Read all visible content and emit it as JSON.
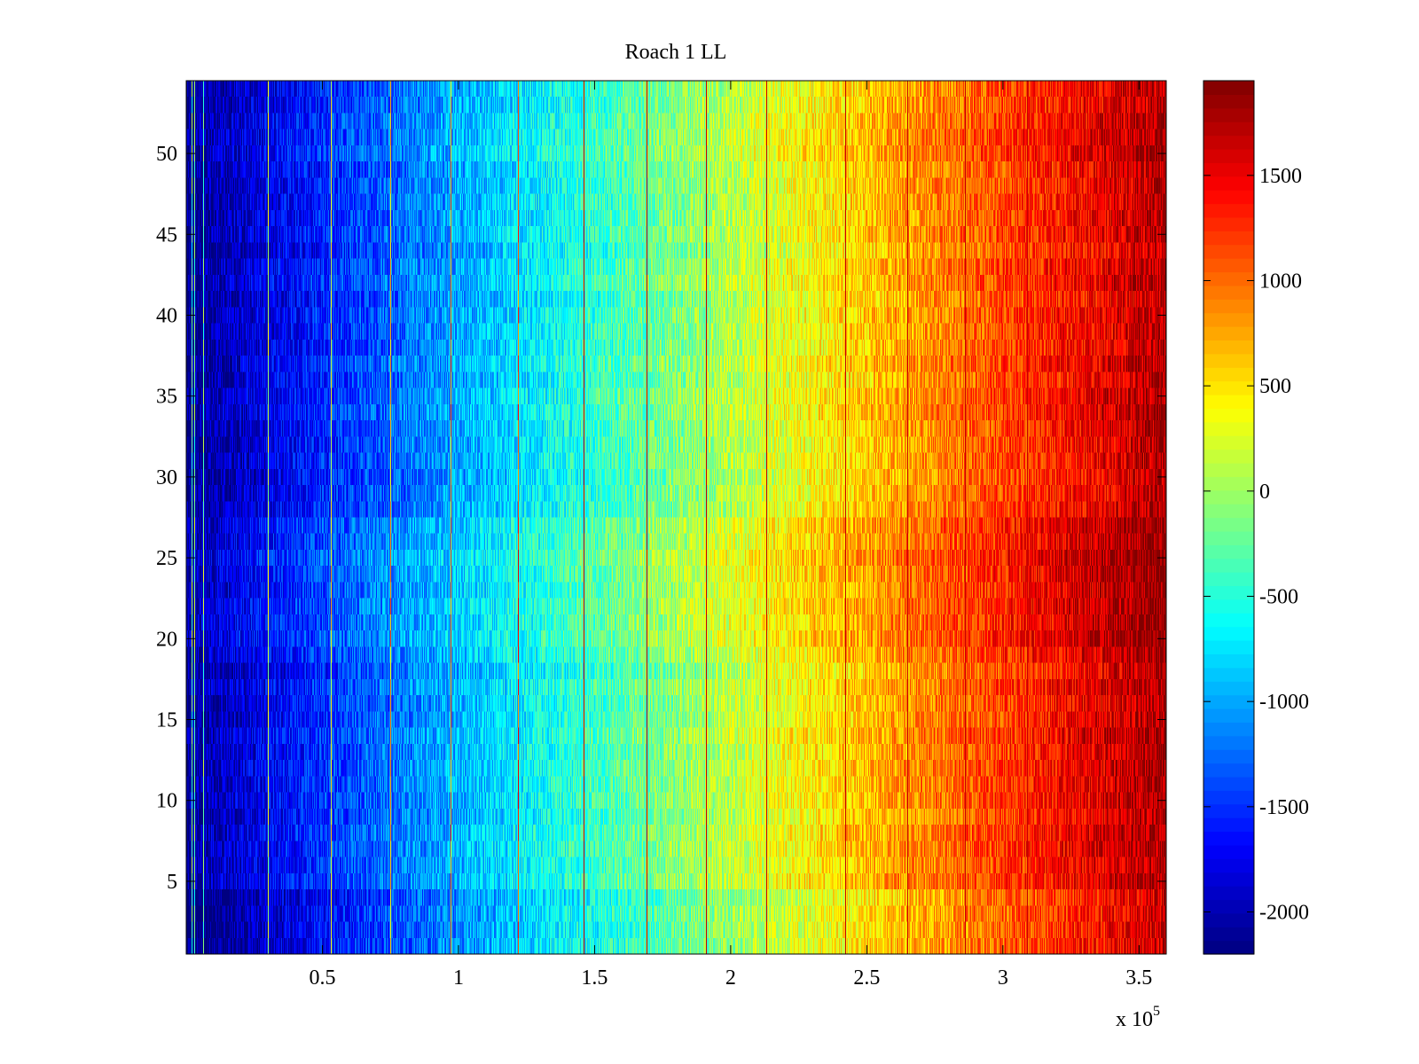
{
  "chart_data": {
    "type": "heatmap",
    "title": "Roach 1 LL",
    "xlabel": "",
    "ylabel": "",
    "x_multiplier_label": "x 10",
    "x_multiplier_exponent": "5",
    "xlim": [
      0,
      360000
    ],
    "ylim": [
      0.5,
      54.5
    ],
    "x_ticks": [
      0.5,
      1,
      1.5,
      2,
      2.5,
      3,
      3.5
    ],
    "x_tick_labels": [
      "0.5",
      "1",
      "1.5",
      "2",
      "2.5",
      "3",
      "3.5"
    ],
    "y_ticks": [
      5,
      10,
      15,
      20,
      25,
      30,
      35,
      40,
      45,
      50
    ],
    "y_tick_labels": [
      "5",
      "10",
      "15",
      "20",
      "25",
      "30",
      "35",
      "40",
      "45",
      "50"
    ],
    "rows": 54,
    "colormap": "jet",
    "colorbar": {
      "clim": [
        -2200,
        1950
      ],
      "ticks": [
        -2000,
        -1500,
        -1000,
        -500,
        0,
        500,
        1000,
        1500
      ],
      "tick_labels": [
        "-2000",
        "-1500",
        "-1000",
        "-500",
        "0",
        "500",
        "1000",
        "1500"
      ]
    },
    "value_model": {
      "description": "Values increase roughly linearly with x from about -2100 at x=0 to about 1800 at x=360000, with fine-grained noise.",
      "start_value": -2100,
      "end_value": 1800,
      "noise": 350
    },
    "bright_vertical_lines_x": [
      1800,
      2800,
      6300,
      30000,
      53000,
      75000,
      97000,
      122000,
      146000,
      169000,
      191000,
      213000,
      242000,
      265000,
      286000,
      309000,
      331000
    ],
    "dark_vertical_lines_x": [
      146000,
      169000,
      191000,
      213000,
      242000,
      265000,
      286000,
      309000,
      331000
    ]
  }
}
